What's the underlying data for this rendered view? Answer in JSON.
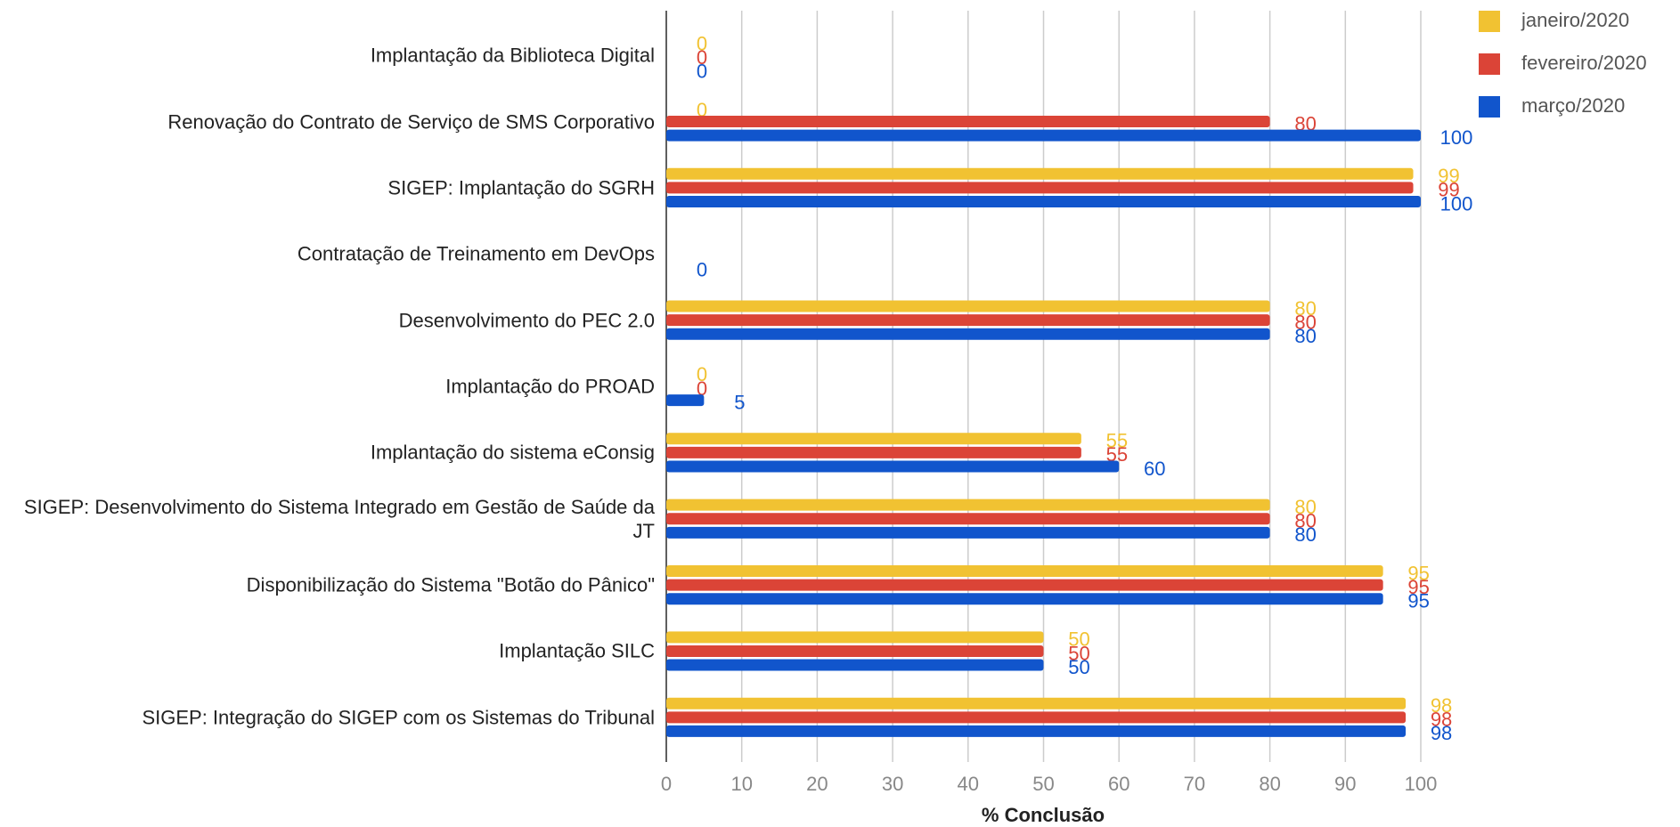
{
  "chart_data": {
    "type": "bar",
    "orientation": "horizontal",
    "x_label": "% Conclusão",
    "categories": [
      "Implantação da Biblioteca Digital",
      "Renovação do Contrato de Serviço de SMS Corporativo",
      "SIGEP: Implantação do SGRH",
      "Contratação de Treinamento em DevOps",
      "Desenvolvimento do PEC 2.0",
      "Implantação do PROAD",
      "Implantação do sistema eConsig",
      "SIGEP: Desenvolvimento do Sistema Integrado em Gestão de Saúde da JT",
      "Disponibilização do Sistema \"Botão do Pânico\"",
      "Implantação SILC",
      "SIGEP: Integração do SIGEP com os Sistemas do Tribunal"
    ],
    "series": [
      {
        "name": "janeiro/2020",
        "color": "#f1c232",
        "values": [
          0,
          0,
          99,
          null,
          80,
          0,
          55,
          80,
          95,
          50,
          98
        ]
      },
      {
        "name": "fevereiro/2020",
        "color": "#db4437",
        "values": [
          0,
          80,
          99,
          null,
          80,
          0,
          55,
          80,
          95,
          50,
          98
        ]
      },
      {
        "name": "março/2020",
        "color": "#1155cc",
        "values": [
          0,
          100,
          100,
          0,
          80,
          5,
          60,
          80,
          95,
          50,
          98
        ]
      }
    ],
    "xlim": [
      0,
      100
    ],
    "xticks": [
      0,
      10,
      20,
      30,
      40,
      50,
      60,
      70,
      80,
      90,
      100
    ],
    "grid": true,
    "legend": "top-right"
  }
}
